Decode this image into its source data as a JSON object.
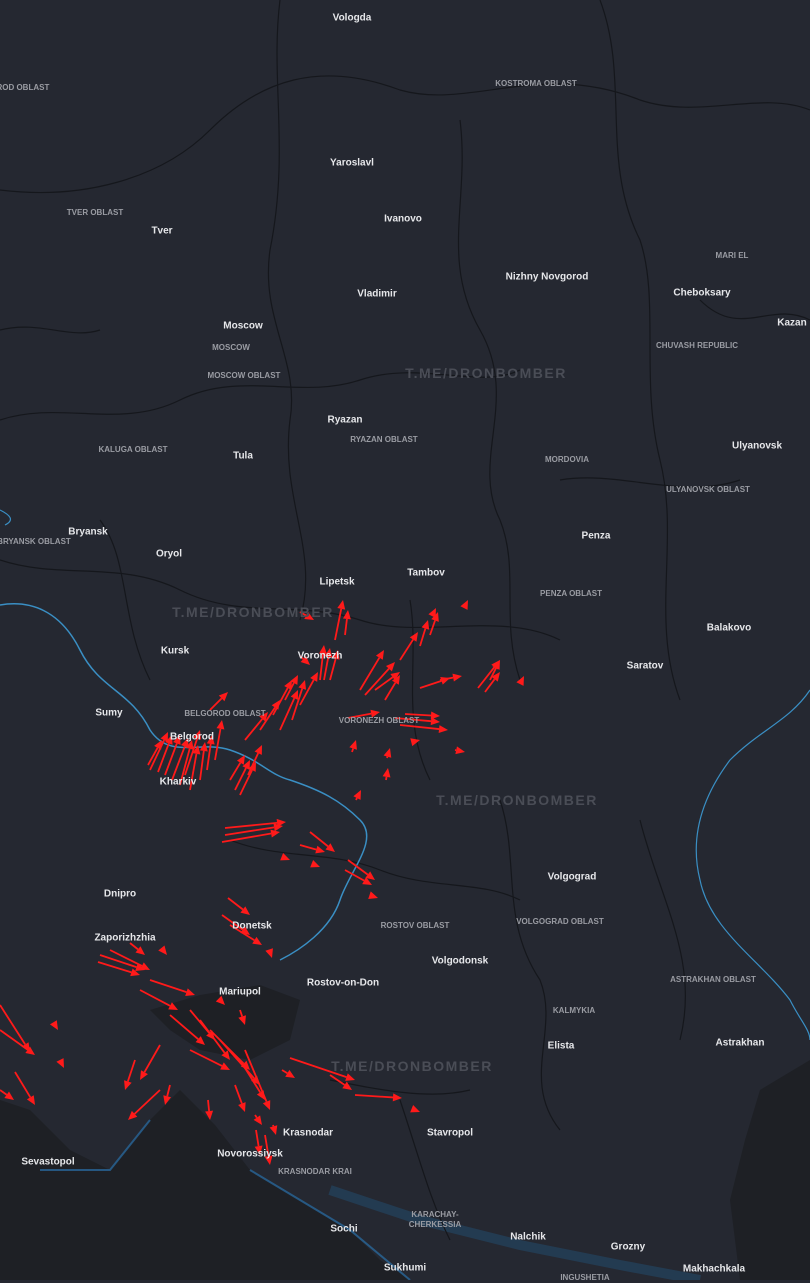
{
  "map": {
    "cities": [
      "Vologda",
      "Yaroslavl",
      "Tver",
      "Ivanovo",
      "Nizhny Novgorod",
      "Vladimir",
      "Cheboksary",
      "Kazan",
      "Moscow",
      "Ryazan",
      "Ulyanovsk",
      "Tula",
      "Bryansk",
      "Oryol",
      "Penza",
      "Lipetsk",
      "Tambov",
      "Kursk",
      "Voronezh",
      "Saratov",
      "Balakovo",
      "Sumy",
      "Belgorod",
      "Kharkiv",
      "Volgograd",
      "Dnipro",
      "Donetsk",
      "Zaporizhzhia",
      "Volgodonsk",
      "Rostov-on-Don",
      "Mariupol",
      "Elista",
      "Astrakhan",
      "Krasnodar",
      "Stavropol",
      "Sevastopol",
      "Novorossiysk",
      "Sochi",
      "Nalchik",
      "Grozny",
      "Sukhumi",
      "Makhachkala"
    ],
    "regions": [
      "NOVGOROD OBLAST",
      "KOSTROMA OBLAST",
      "TVER OBLAST",
      "MARI EL",
      "CHUVASH REPUBLIC",
      "MOSCOW",
      "MOSCOW OBLAST",
      "RYAZAN OBLAST",
      "KALUGA OBLAST",
      "MORDOVIA",
      "ULYANOVSK OBLAST",
      "BRYANSK OBLAST",
      "PENZA OBLAST",
      "BELGOROD OBLAST",
      "VORONEZH OBLAST",
      "ROSTOV OBLAST",
      "VOLGOGRAD OBLAST",
      "KALMYKIA",
      "ASTRAKHAN OBLAST",
      "KRASNODAR KRAI",
      "KARACHAY-CHERKESSIA",
      "INGUSHETIA"
    ],
    "watermark": "T.ME/DRONBOMBER",
    "colors": {
      "land": "#252831",
      "sea": "#1e2025",
      "border": "#15171c",
      "frontline": "#3a8fc4",
      "arrow": "#ff1a1a",
      "coast": "#2a6fa8"
    },
    "arrow_icon": "red-flight-direction-arrow"
  }
}
